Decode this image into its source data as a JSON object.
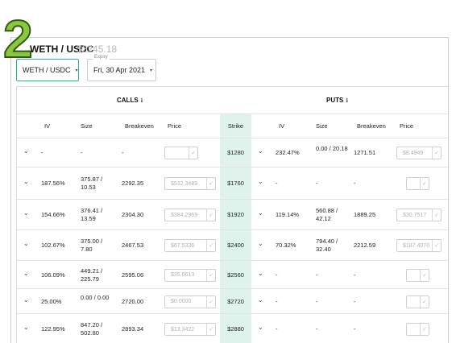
{
  "step_number": "2",
  "header": {
    "pair_title": "WETH / USDC",
    "pair_price": "$2245.18"
  },
  "pair_select": {
    "value": "WETH / USDC",
    "caret": "▾"
  },
  "expiry_select": {
    "label": "Expiry",
    "value": "Fri, 30 Apr 2021",
    "caret": "▾"
  },
  "sections": {
    "calls_label": "CALLS",
    "puts_label": "PUTS",
    "info_glyph": "ℹ"
  },
  "columns": {
    "calls": [
      "IV",
      "Size",
      "Breakeven",
      "Price"
    ],
    "strike": "Strike",
    "puts": [
      "IV",
      "Size",
      "Breakeven",
      "Price"
    ]
  },
  "icons": {
    "expand": "chevron-down-icon",
    "confirm": "check-icon",
    "chevron_glyph": "⌄",
    "check_glyph": "✓"
  },
  "colors": {
    "accent": "#25b78d",
    "strike_bg": "#dff3ec",
    "badge": "#8cc63f"
  },
  "rows": [
    {
      "call_iv": "-",
      "call_size": "-",
      "call_breakeven": "-",
      "call_price": "",
      "strike": "$1280",
      "put_iv": "232.47%",
      "put_size": "0.00 / 20.18",
      "put_breakeven": "1271.51",
      "put_price": "$8.4949"
    },
    {
      "call_iv": "187.56%",
      "call_size": "375.87 / 10.53",
      "call_breakeven": "2292.35",
      "call_price": "$532.3489",
      "strike": "$1760",
      "put_iv": "-",
      "put_size": "-",
      "put_breakeven": "-",
      "put_price": ""
    },
    {
      "call_iv": "154.66%",
      "call_size": "376.41 / 13.59",
      "call_breakeven": "2304.30",
      "call_price": "$384.2969",
      "strike": "$1920",
      "put_iv": "119.14%",
      "put_size": "560.88 / 42.12",
      "put_breakeven": "1889.25",
      "put_price": "$30.7517"
    },
    {
      "call_iv": "102.67%",
      "call_size": "375.00 / 7.80",
      "call_breakeven": "2467.53",
      "call_price": "$67.5336",
      "strike": "$2400",
      "put_iv": "70.32%",
      "put_size": "794.40 / 32.40",
      "put_breakeven": "2212.59",
      "put_price": "$187.4070"
    },
    {
      "call_iv": "106.09%",
      "call_size": "449.21 / 225.79",
      "call_breakeven": "2595.06",
      "call_price": "$35.0613",
      "strike": "$2560",
      "put_iv": "-",
      "put_size": "-",
      "put_breakeven": "-",
      "put_price": ""
    },
    {
      "call_iv": "25.00%",
      "call_size": "0.00 / 0.00",
      "call_breakeven": "2720.00",
      "call_price": "$0.0000",
      "strike": "$2720",
      "put_iv": "-",
      "put_size": "-",
      "put_breakeven": "-",
      "put_price": ""
    },
    {
      "call_iv": "122.95%",
      "call_size": "847.20 / 502.80",
      "call_breakeven": "2893.34",
      "call_price": "$13.3422",
      "strike": "$2880",
      "put_iv": "-",
      "put_size": "-",
      "put_breakeven": "-",
      "put_price": ""
    }
  ]
}
